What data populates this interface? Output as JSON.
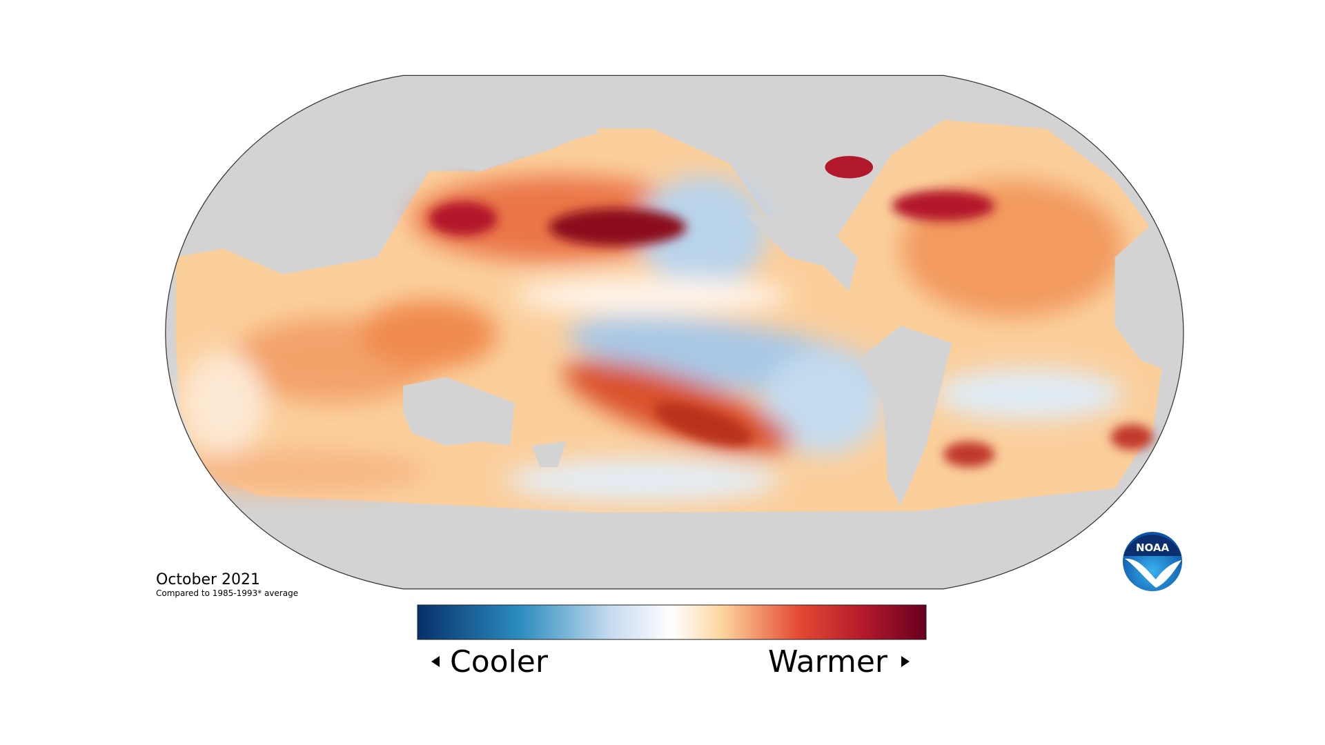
{
  "map": {
    "date": "October 2021",
    "caption": "Compared to 1985-1993* average"
  },
  "legend": {
    "low_label": "Cooler",
    "high_label": "Warmer"
  },
  "logo": {
    "text": "NOAA"
  }
}
